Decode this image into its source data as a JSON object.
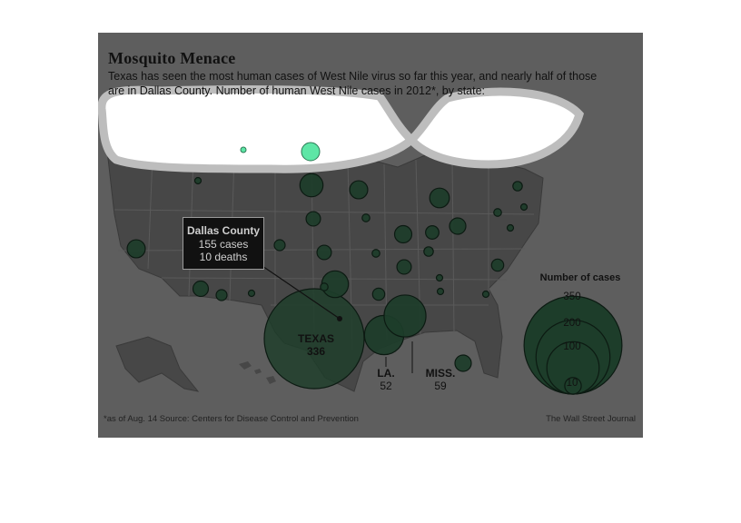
{
  "title": "Mosquito Menace",
  "subtitle": "Texas has seen the most human cases of West Nile virus so far this year, and nearly half of those are in Dallas County. Number of human West Nile cases in 2012*, by state:",
  "callout": {
    "head": "Dallas County",
    "line1": "155 cases",
    "line2": "10 deaths"
  },
  "labels": {
    "texas": {
      "name": "TEXAS",
      "value": "336"
    },
    "la": {
      "name": "LA.",
      "value": "52"
    },
    "miss": {
      "name": "MISS.",
      "value": "59"
    }
  },
  "legend": {
    "title": "Number of cases",
    "values": [
      "350",
      "200",
      "100",
      "10"
    ]
  },
  "footnote": "*as of Aug. 14    Source: Centers for Disease Control and Prevention",
  "credit": "The Wall Street Journal",
  "colors": {
    "panel": "#5e5e5e",
    "land": "#444444",
    "bubble": "#1d3d2a",
    "bubble_edge": "#0c1a12",
    "highlight": "#5ee6a6",
    "obscured": "#ffffff"
  },
  "bubbles_cases": [
    336,
    52,
    59,
    24,
    18,
    13,
    11,
    11,
    10,
    9,
    9,
    8,
    7,
    7,
    7,
    6,
    5,
    5,
    4,
    4,
    3,
    3,
    2,
    2,
    2,
    2,
    1,
    1,
    1,
    1,
    1,
    1,
    1
  ]
}
